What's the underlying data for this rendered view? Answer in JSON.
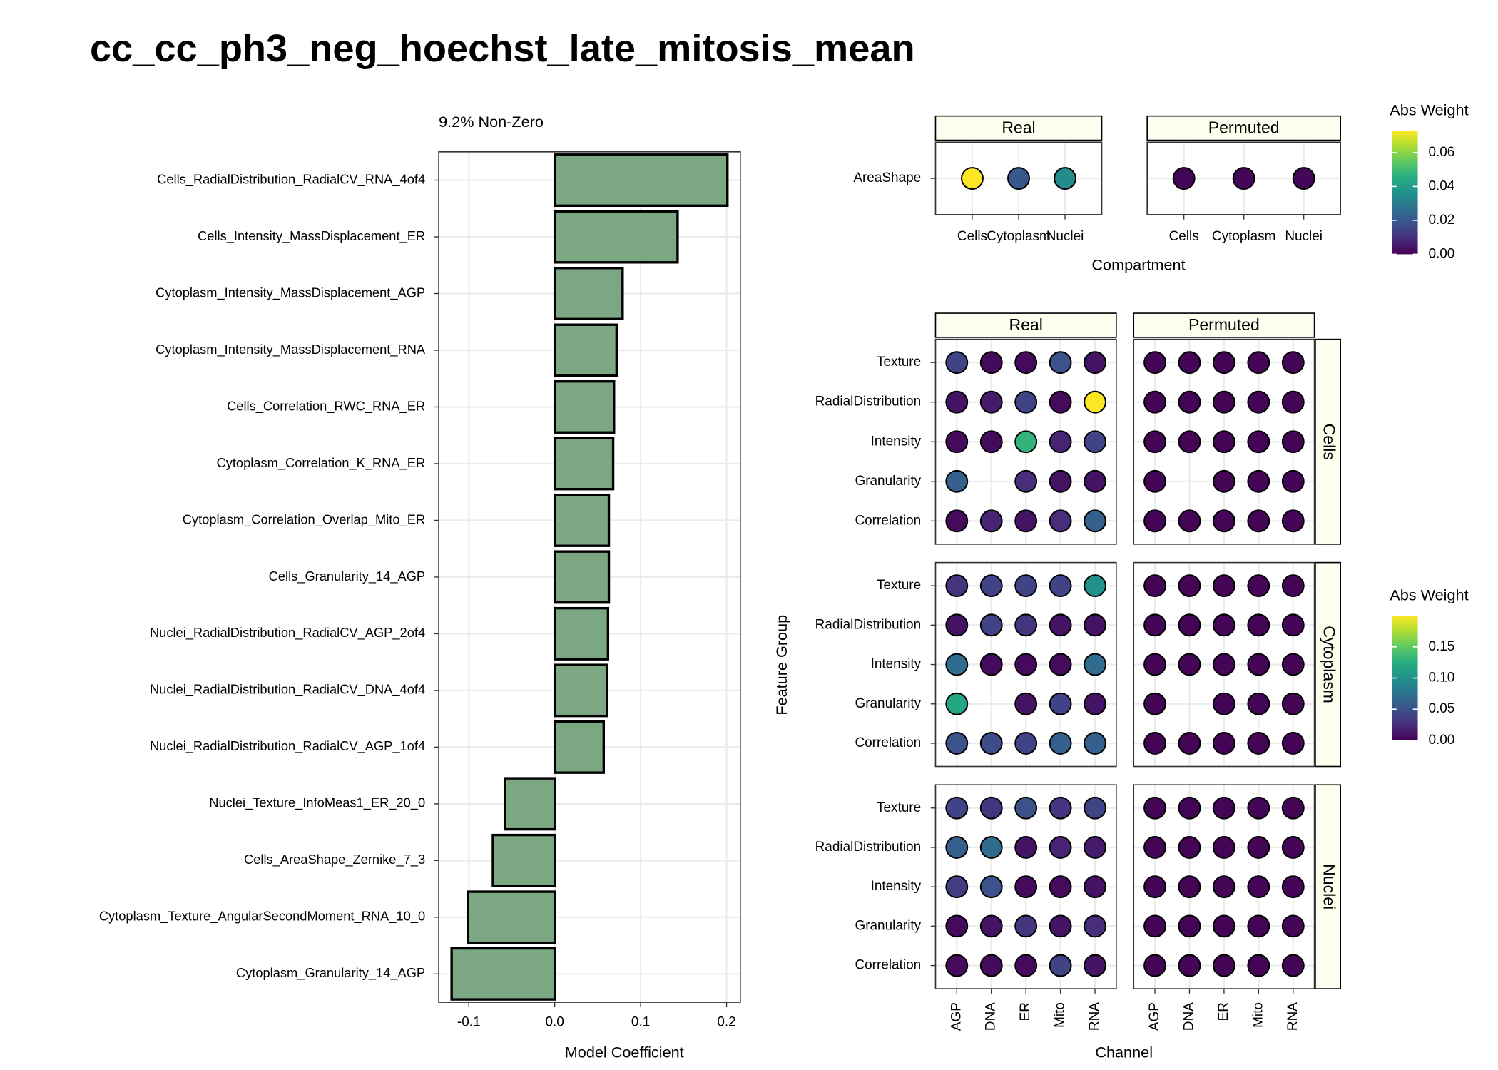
{
  "title": "cc_cc_ph3_neg_hoechst_late_mitosis_mean",
  "chart_data": [
    {
      "type": "bar",
      "orientation": "horizontal",
      "subtitle": "9.2% Non-Zero",
      "xlabel": "Model Coefficient",
      "categories": [
        "Cells_RadialDistribution_RadialCV_RNA_4of4",
        "Cells_Intensity_MassDisplacement_ER",
        "Cytoplasm_Intensity_MassDisplacement_AGP",
        "Cytoplasm_Intensity_MassDisplacement_RNA",
        "Cells_Correlation_RWC_RNA_ER",
        "Cytoplasm_Correlation_K_RNA_ER",
        "Cytoplasm_Correlation_Overlap_Mito_ER",
        "Cells_Granularity_14_AGP",
        "Nuclei_RadialDistribution_RadialCV_AGP_2of4",
        "Nuclei_RadialDistribution_RadialCV_DNA_4of4",
        "Nuclei_RadialDistribution_RadialCV_AGP_1of4",
        "Nuclei_Texture_InfoMeas1_ER_20_0",
        "Cells_AreaShape_Zernike_7_3",
        "Cytoplasm_Texture_AngularSecondMoment_RNA_10_0",
        "Cytoplasm_Granularity_14_AGP"
      ],
      "values": [
        0.201,
        0.143,
        0.079,
        0.072,
        0.069,
        0.068,
        0.063,
        0.063,
        0.062,
        0.061,
        0.057,
        -0.058,
        -0.072,
        -0.101,
        -0.12
      ],
      "color": "#7ba882",
      "xlim": [
        -0.135,
        0.216
      ],
      "xticks": [
        -0.1,
        {
          "value": 0,
          "label": "0.0"
        },
        0.1,
        0.2
      ],
      "grid": true
    },
    {
      "type": "dot",
      "xlabel": "Compartment",
      "rows": [
        "AreaShape"
      ],
      "columns": [
        "Cells",
        "Cytoplasm",
        "Nuclei"
      ],
      "series": [
        {
          "name": "Real",
          "values": [
            [
              0.073,
              0.02,
              0.035
            ]
          ]
        },
        {
          "name": "Permuted",
          "values": [
            [
              0.001,
              0.001,
              0.001
            ]
          ]
        }
      ],
      "colormap": "viridis",
      "legend_title": "Abs Weight",
      "clim": [
        0,
        0.073
      ],
      "cticks": [
        {
          "value": 0,
          "label": "0.00"
        },
        0.02,
        0.04,
        0.06
      ],
      "grid": true
    },
    {
      "type": "dot",
      "xlabel": "Channel",
      "ylabel": "Feature Group",
      "facets": [
        "Cells",
        "Cytoplasm",
        "Nuclei"
      ],
      "rows": [
        "Texture",
        "RadialDistribution",
        "Intensity",
        "Granularity",
        "Correlation"
      ],
      "columns": [
        "AGP",
        "DNA",
        "ER",
        "Mito",
        "RNA"
      ],
      "series": [
        {
          "name": "Real",
          "values": [
            [
              [
                0.04,
                0.005,
                0.005,
                0.05,
                0.01
              ],
              [
                0.01,
                0.015,
                0.04,
                0.005,
                0.2
              ],
              [
                0.005,
                0.005,
                0.13,
                0.02,
                0.04
              ],
              [
                0.06,
                null,
                0.025,
                0.01,
                0.01
              ],
              [
                0.005,
                0.02,
                0.01,
                0.025,
                0.06
              ]
            ],
            [
              [
                0.03,
                0.04,
                0.04,
                0.04,
                0.1
              ],
              [
                0.01,
                0.04,
                0.03,
                0.01,
                0.01
              ],
              [
                0.07,
                0.005,
                0.005,
                0.005,
                0.07
              ],
              [
                0.12,
                null,
                0.01,
                0.04,
                0.01
              ],
              [
                0.05,
                0.045,
                0.04,
                0.06,
                0.06
              ]
            ],
            [
              [
                0.04,
                0.03,
                0.05,
                0.03,
                0.04
              ],
              [
                0.06,
                0.07,
                0.01,
                0.02,
                0.015
              ],
              [
                0.035,
                0.05,
                0.005,
                0.005,
                0.01
              ],
              [
                0.005,
                0.01,
                0.03,
                0.01,
                0.025
              ],
              [
                0.005,
                0.005,
                0.005,
                0.04,
                0.01
              ]
            ]
          ]
        },
        {
          "name": "Permuted",
          "values": [
            [
              [
                0.002,
                0.002,
                0.002,
                0.002,
                0.002
              ],
              [
                0.002,
                0.002,
                0.002,
                0.002,
                0.002
              ],
              [
                0.002,
                0.002,
                0.002,
                0.002,
                0.002
              ],
              [
                0.002,
                null,
                0.002,
                0.002,
                0.002
              ],
              [
                0.002,
                0.002,
                0.002,
                0.002,
                0.002
              ]
            ],
            [
              [
                0.002,
                0.002,
                0.002,
                0.002,
                0.002
              ],
              [
                0.002,
                0.002,
                0.002,
                0.002,
                0.002
              ],
              [
                0.002,
                0.002,
                0.002,
                0.002,
                0.002
              ],
              [
                0.002,
                null,
                0.002,
                0.002,
                0.002
              ],
              [
                0.002,
                0.002,
                0.002,
                0.002,
                0.002
              ]
            ],
            [
              [
                0.002,
                0.002,
                0.002,
                0.002,
                0.002
              ],
              [
                0.002,
                0.002,
                0.002,
                0.002,
                0.002
              ],
              [
                0.002,
                0.002,
                0.002,
                0.002,
                0.002
              ],
              [
                0.002,
                0.002,
                0.002,
                0.002,
                0.002
              ],
              [
                0.002,
                0.002,
                0.002,
                0.002,
                0.002
              ]
            ]
          ]
        }
      ],
      "colormap": "viridis",
      "legend_title": "Abs Weight",
      "clim": [
        0,
        0.2
      ],
      "cticks": [
        {
          "value": 0,
          "label": "0.00"
        },
        0.05,
        {
          "value": 0.1,
          "label": "0.10"
        },
        0.15
      ],
      "grid": true
    }
  ]
}
